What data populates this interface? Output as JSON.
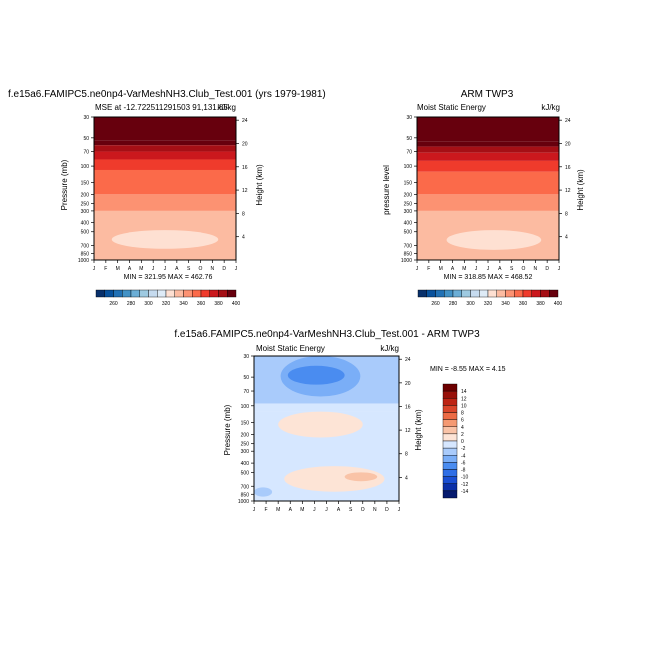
{
  "colors": {
    "abs_palette": [
      "#08306b",
      "#08519c",
      "#2171b5",
      "#4292c6",
      "#6baed6",
      "#9ecae1",
      "#c6dbef",
      "#deebf7",
      "#fee0d2",
      "#fcbba1",
      "#fc9272",
      "#fb6a4a",
      "#ef3b2c",
      "#cb181d",
      "#a50f15",
      "#67000d"
    ],
    "diff_palette": [
      "#061a6e",
      "#0b30a8",
      "#1a4fd3",
      "#2f6fe6",
      "#4a8cf0",
      "#7aaef7",
      "#a9cbfb",
      "#d6e7ff",
      "#fde4d6",
      "#f9c3a7",
      "#f59a73",
      "#ec6b45",
      "#d9452a",
      "#bd2414",
      "#98110a",
      "#6d0000"
    ]
  },
  "chart_data": [
    {
      "id": "model",
      "type": "heatmap",
      "title": "f.e15a6.FAMIPC5.ne0np4-VarMeshNH3.Club_Test.001 (yrs 1979-1981)",
      "left_label": "MSE at -12.722511291503 91,131.85",
      "right_label": "kJ/kg",
      "ylabel": "Pressure (mb)",
      "y2label": "Height (km)",
      "months": [
        "J",
        "F",
        "M",
        "A",
        "M",
        "J",
        "J",
        "A",
        "S",
        "O",
        "N",
        "D",
        "J"
      ],
      "pressure_ticks": [
        30,
        50,
        70,
        100,
        150,
        200,
        250,
        300,
        400,
        500,
        700,
        850,
        1000
      ],
      "height_ticks": [
        24,
        20,
        16,
        12,
        8,
        4
      ],
      "min_max": "MIN = 321.95  MAX = 462.76",
      "colorbar_levels": [
        260,
        280,
        300,
        320,
        340,
        360,
        380,
        400
      ],
      "layers": [
        {
          "p_top": 30,
          "p_bot": 53,
          "value": 462
        },
        {
          "p_top": 53,
          "p_bot": 60,
          "value": 400
        },
        {
          "p_top": 60,
          "p_bot": 70,
          "value": 385
        },
        {
          "p_top": 70,
          "p_bot": 85,
          "value": 372
        },
        {
          "p_top": 85,
          "p_bot": 110,
          "value": 360
        },
        {
          "p_top": 110,
          "p_bot": 200,
          "value": 352
        },
        {
          "p_top": 200,
          "p_bot": 300,
          "value": 344
        },
        {
          "p_top": 300,
          "p_bot": 1000,
          "value": 336
        }
      ],
      "blobs": [
        {
          "month_start": 1.5,
          "month_end": 10.5,
          "p_top": 480,
          "p_bot": 760,
          "value": 328
        }
      ]
    },
    {
      "id": "obs",
      "type": "heatmap",
      "title": "ARM TWP3",
      "left_label": "Moist Static Energy",
      "right_label": "kJ/kg",
      "ylabel": "pressure level",
      "y2label": "Height (km)",
      "months": [
        "J",
        "F",
        "M",
        "A",
        "M",
        "J",
        "J",
        "A",
        "S",
        "O",
        "N",
        "D",
        "J"
      ],
      "pressure_ticks": [
        30,
        50,
        70,
        100,
        150,
        200,
        250,
        300,
        400,
        500,
        700,
        850,
        1000
      ],
      "height_ticks": [
        24,
        20,
        16,
        12,
        8,
        4
      ],
      "min_max": "MIN = 318.85  MAX = 468.52",
      "colorbar_levels": [
        260,
        280,
        300,
        320,
        340,
        360,
        380,
        400
      ],
      "layers": [
        {
          "p_top": 30,
          "p_bot": 55,
          "value": 465
        },
        {
          "p_top": 55,
          "p_bot": 62,
          "value": 400
        },
        {
          "p_top": 62,
          "p_bot": 72,
          "value": 385
        },
        {
          "p_top": 72,
          "p_bot": 88,
          "value": 372
        },
        {
          "p_top": 88,
          "p_bot": 115,
          "value": 360
        },
        {
          "p_top": 115,
          "p_bot": 200,
          "value": 352
        },
        {
          "p_top": 200,
          "p_bot": 300,
          "value": 344
        },
        {
          "p_top": 300,
          "p_bot": 1000,
          "value": 336
        }
      ],
      "blobs": [
        {
          "month_start": 2.5,
          "month_end": 10.5,
          "p_top": 480,
          "p_bot": 780,
          "value": 328
        },
        {
          "month_start": 6.5,
          "month_end": 8,
          "p_top": 680,
          "p_bot": 740,
          "value": 322
        }
      ]
    },
    {
      "id": "diff",
      "type": "heatmap",
      "title": "f.e15a6.FAMIPC5.ne0np4-VarMeshNH3.Club_Test.001 - ARM TWP3",
      "left_label": "Moist Static Energy",
      "right_label": "kJ/kg",
      "ylabel": "Pressure (mb)",
      "y2label": "Height (km)",
      "months": [
        "J",
        "F",
        "M",
        "A",
        "M",
        "J",
        "J",
        "A",
        "S",
        "O",
        "N",
        "D",
        "J"
      ],
      "pressure_ticks": [
        30,
        50,
        70,
        100,
        150,
        200,
        250,
        300,
        400,
        500,
        700,
        850,
        1000
      ],
      "height_ticks": [
        24,
        20,
        16,
        12,
        8,
        4
      ],
      "min_max": "MIN = -8.55  MAX = 4.15",
      "colorbar_levels": [
        14,
        12,
        10,
        8,
        6,
        4,
        2,
        0,
        -2,
        -4,
        -6,
        -8,
        -10,
        -12,
        -14
      ],
      "layers": [
        {
          "p_top": 30,
          "p_bot": 95,
          "value": -3
        },
        {
          "p_top": 95,
          "p_bot": 115,
          "value": -1
        },
        {
          "p_top": 115,
          "p_bot": 1000,
          "value": -1
        }
      ],
      "blobs": [
        {
          "month_start": 2.2,
          "month_end": 8.8,
          "p_top": 30,
          "p_bot": 80,
          "value": -5
        },
        {
          "month_start": 2.8,
          "month_end": 7.5,
          "p_top": 38,
          "p_bot": 60,
          "value": -7
        },
        {
          "month_start": 2.0,
          "month_end": 9.0,
          "p_top": 115,
          "p_bot": 215,
          "value": 1
        },
        {
          "month_start": 2.5,
          "month_end": 10.8,
          "p_top": 430,
          "p_bot": 800,
          "value": 1
        },
        {
          "month_start": 7.5,
          "month_end": 10.2,
          "p_top": 500,
          "p_bot": 620,
          "value": 3
        },
        {
          "month_start": 0,
          "month_end": 1.5,
          "p_top": 720,
          "p_bot": 900,
          "value": -4
        }
      ]
    }
  ]
}
